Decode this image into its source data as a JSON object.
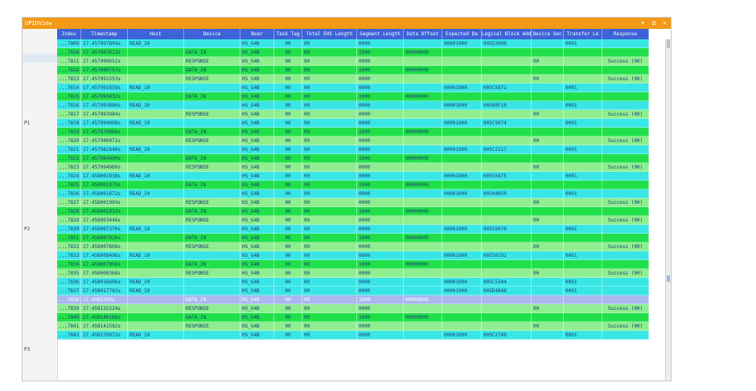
{
  "window": {
    "title": "UPIUView",
    "controls": "▾ ⊡ ✕"
  },
  "columns": [
    "Index",
    "Timestamp",
    "Host",
    "Device",
    "Boar",
    "Task Tag",
    "Total EHS Length",
    "Segment Length",
    "Data Offset",
    "Expected Da",
    "Logical Block Add",
    "Device Sec",
    "Transfer Le",
    "Response"
  ],
  "gutter_labels": [
    "P1",
    "P2",
    "P3"
  ],
  "rows": [
    {
      "t": "read",
      "v": [
        "...7809",
        "17.457997804s",
        "READ_10",
        "",
        "HS_G4B",
        "00",
        "00",
        "0000",
        "",
        "00001000",
        "00553000",
        "",
        "0001",
        ""
      ]
    },
    {
      "t": "data",
      "v": [
        "...7810",
        "17.457997813s",
        "",
        "DATA_IN",
        "HS_G4B",
        "00",
        "00",
        "1000",
        "00000000",
        "",
        "",
        "",
        "",
        ""
      ]
    },
    {
      "t": "resp",
      "v": [
        "...7811",
        "17.457999652s",
        "",
        "RESPONSE",
        "HS_G4B",
        "00",
        "00",
        "0000",
        "",
        "",
        "",
        "00",
        "",
        "Success (00)"
      ]
    },
    {
      "t": "data",
      "v": [
        "...7812",
        "17.457999757s",
        "",
        "DATA_IN",
        "HS_G4B",
        "00",
        "00",
        "1000",
        "00000000",
        "",
        "",
        "",
        "",
        ""
      ]
    },
    {
      "t": "resp",
      "v": [
        "...7813",
        "17.457991553s",
        "",
        "RESPONSE",
        "HS_G4B",
        "00",
        "00",
        "0000",
        "",
        "",
        "",
        "00",
        "",
        "Success (00)"
      ]
    },
    {
      "t": "read",
      "v": [
        "...7814",
        "17.457991659s",
        "READ_10",
        "",
        "HS_G4B",
        "00",
        "00",
        "0000",
        "",
        "00001000",
        "005C5872",
        "",
        "0001",
        ""
      ]
    },
    {
      "t": "data",
      "v": [
        "...7815",
        "17.457993432s",
        "",
        "DATA_IN",
        "HS_G4B",
        "00",
        "00",
        "1000",
        "00000000",
        "",
        "",
        "",
        "",
        ""
      ]
    },
    {
      "t": "read",
      "v": [
        "...7816",
        "17.457993880s",
        "READ_10",
        "",
        "HS_G4B",
        "00",
        "00",
        "0000",
        "",
        "00001000",
        "00500F10",
        "",
        "0001",
        ""
      ]
    },
    {
      "t": "resp",
      "v": [
        "...7817",
        "17.457993984s",
        "",
        "RESPONSE",
        "HS_G4B",
        "00",
        "00",
        "0000",
        "",
        "",
        "",
        "00",
        "",
        "Success (00)"
      ]
    },
    {
      "t": "read",
      "v": [
        "...7818",
        "17.457994008s",
        "READ_10",
        "",
        "HS_G4B",
        "00",
        "00",
        "0000",
        "",
        "00001000",
        "005C5074",
        "",
        "0001",
        ""
      ]
    },
    {
      "t": "data",
      "v": [
        "...7819",
        "17.457970868s",
        "",
        "DATA_IN",
        "HS_G4B",
        "00",
        "00",
        "1000",
        "00000000",
        "",
        "",
        "",
        "",
        ""
      ]
    },
    {
      "t": "resp",
      "v": [
        "...7820",
        "17.457980072s",
        "",
        "RESPONSE",
        "HS_G4B",
        "00",
        "00",
        "0000",
        "",
        "",
        "",
        "00",
        "",
        "Success (00)"
      ]
    },
    {
      "t": "read",
      "v": [
        "...7821",
        "17.457981640s",
        "READ_10",
        "",
        "HS_G4B",
        "00",
        "00",
        "0000",
        "",
        "00001000",
        "005C2117",
        "",
        "0001",
        ""
      ]
    },
    {
      "t": "data",
      "v": [
        "...7822",
        "17.457984490s",
        "",
        "DATA_IN",
        "HS_G4B",
        "00",
        "00",
        "1000",
        "00000000",
        "",
        "",
        "",
        "",
        ""
      ]
    },
    {
      "t": "resp",
      "v": [
        "...7823",
        "17.457994080s",
        "",
        "RESPONSE",
        "HS_G4B",
        "00",
        "00",
        "0000",
        "",
        "",
        "",
        "00",
        "",
        "Success (00)"
      ]
    },
    {
      "t": "read",
      "v": [
        "...7824",
        "17.458001938s",
        "READ_10",
        "",
        "HS_G4B",
        "00",
        "00",
        "0000",
        "",
        "00001000",
        "00555875",
        "",
        "0001",
        ""
      ]
    },
    {
      "t": "data",
      "v": [
        "...7825",
        "17.458001979s",
        "",
        "DATA_IN",
        "HS_G4B",
        "00",
        "00",
        "1000",
        "00000000",
        "",
        "",
        "",
        "",
        ""
      ]
    },
    {
      "t": "read",
      "v": [
        "...7826",
        "17.458001672s",
        "READ_10",
        "",
        "HS_G4B",
        "00",
        "00",
        "0000",
        "",
        "00001000",
        "00504050",
        "",
        "0001",
        ""
      ]
    },
    {
      "t": "resp",
      "v": [
        "...7827",
        "17.458001904s",
        "",
        "RESPONSE",
        "HS_G4B",
        "00",
        "00",
        "0000",
        "",
        "",
        "",
        "00",
        "",
        "Success (00)"
      ]
    },
    {
      "t": "data",
      "v": [
        "...7828",
        "17.458001932s",
        "",
        "DATA_IN",
        "HS_G4B",
        "00",
        "00",
        "1000",
        "00000000",
        "",
        "",
        "",
        "",
        ""
      ]
    },
    {
      "t": "resp",
      "v": [
        "...7829",
        "17.458003448s",
        "",
        "RESPONSE",
        "HS_G4B",
        "00",
        "00",
        "0000",
        "",
        "",
        "",
        "00",
        "",
        "Success (00)"
      ]
    },
    {
      "t": "read",
      "v": [
        "...7830",
        "17.458007370s",
        "READ_10",
        "",
        "HS_G4B",
        "00",
        "00",
        "0000",
        "",
        "00001000",
        "00555070",
        "",
        "0001",
        ""
      ]
    },
    {
      "t": "data",
      "v": [
        "...7831",
        "17.458007026s",
        "",
        "DATA_IN",
        "HS_G4B",
        "00",
        "00",
        "1000",
        "00000000",
        "",
        "",
        "",
        "",
        ""
      ]
    },
    {
      "t": "resp",
      "v": [
        "...7832",
        "17.458007608s",
        "",
        "RESPONSE",
        "HS_G4B",
        "00",
        "00",
        "0000",
        "",
        "",
        "",
        "00",
        "",
        "Success (00)"
      ]
    },
    {
      "t": "read",
      "v": [
        "...7833",
        "17.458008496s",
        "READ_10",
        "",
        "HS_G4B",
        "00",
        "00",
        "0000",
        "",
        "00001000",
        "00550192",
        "",
        "0001",
        ""
      ]
    },
    {
      "t": "data",
      "v": [
        "...7834",
        "17.458007856s",
        "",
        "DATA_IN",
        "HS_G4B",
        "00",
        "00",
        "1000",
        "00000000",
        "",
        "",
        "",
        "",
        ""
      ]
    },
    {
      "t": "resp",
      "v": [
        "...7835",
        "17.458008368s",
        "",
        "RESPONSE",
        "HS_G4B",
        "00",
        "00",
        "0000",
        "",
        "",
        "",
        "00",
        "",
        "Success (00)"
      ]
    },
    {
      "t": "read",
      "v": [
        "...7836",
        "17.458016696s",
        "READ_10",
        "",
        "HS_G4B",
        "00",
        "00",
        "0000",
        "",
        "00001000",
        "005C5344",
        "",
        "0001",
        ""
      ]
    },
    {
      "t": "read",
      "v": [
        "...7837",
        "17.458017792s",
        "READ_10",
        "",
        "HS_G4B",
        "00",
        "00",
        "0000",
        "",
        "00001000",
        "005D4848",
        "",
        "0001",
        ""
      ]
    },
    {
      "t": "sel",
      "v": [
        "...7838",
        "17.4581304s",
        "",
        "DATA_IN",
        "HS_G4B",
        "00",
        "00",
        "1000",
        "00000000",
        "",
        "",
        "",
        "",
        ""
      ]
    },
    {
      "t": "resp",
      "v": [
        "...7839",
        "17.458132224s",
        "",
        "RESPONSE",
        "HS_G4B",
        "00",
        "00",
        "0000",
        "",
        "",
        "",
        "00",
        "",
        "Success (00)"
      ]
    },
    {
      "t": "data",
      "v": [
        "...7840",
        "17.458140160s",
        "",
        "DATA_IN",
        "HS_G4B",
        "00",
        "00",
        "1000",
        "00000000",
        "",
        "",
        "",
        "",
        ""
      ]
    },
    {
      "t": "resp",
      "v": [
        "...7841",
        "17.458141592s",
        "",
        "RESPONSE",
        "HS_G4B",
        "00",
        "00",
        "0000",
        "",
        "",
        "",
        "00",
        "",
        "Success (00)"
      ]
    },
    {
      "t": "read",
      "v": [
        "...7842",
        "17.458170072s",
        "READ_10",
        "",
        "HS_G4B",
        "00",
        "00",
        "0000",
        "",
        "00001000",
        "005C2748",
        "",
        "0001",
        ""
      ]
    }
  ]
}
